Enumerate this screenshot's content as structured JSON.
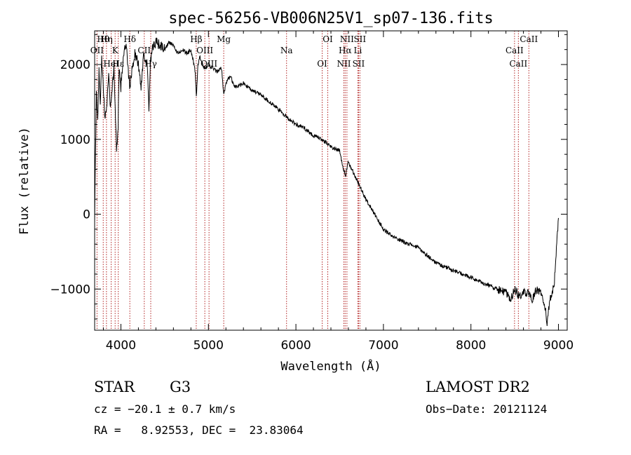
{
  "chart_data": {
    "type": "line",
    "title": "spec-56256-VB006N25V1_sp07-136.fits",
    "xlabel": "Wavelength (Å)",
    "ylabel": "Flux (relative)",
    "xlim": [
      3700,
      9100
    ],
    "ylim": [
      -1550,
      2450
    ],
    "xticks": [
      4000,
      5000,
      6000,
      7000,
      8000,
      9000
    ],
    "yticks": [
      -1000,
      0,
      1000,
      2000
    ],
    "series": [
      {
        "name": "flux",
        "x": [
          3700,
          3710,
          3720,
          3735,
          3750,
          3765,
          3780,
          3800,
          3820,
          3840,
          3860,
          3880,
          3900,
          3920,
          3935,
          3950,
          3968,
          3980,
          4000,
          4030,
          4060,
          4100,
          4130,
          4160,
          4200,
          4230,
          4260,
          4300,
          4320,
          4340,
          4360,
          4400,
          4450,
          4500,
          4550,
          4600,
          4650,
          4700,
          4750,
          4800,
          4850,
          4862,
          4880,
          4900,
          4950,
          5000,
          5050,
          5100,
          5150,
          5175,
          5200,
          5250,
          5300,
          5400,
          5500,
          5600,
          5700,
          5800,
          5890,
          5950,
          6000,
          6100,
          6200,
          6300,
          6400,
          6500,
          6563,
          6600,
          6700,
          6800,
          6900,
          7000,
          7100,
          7200,
          7300,
          7400,
          7500,
          7600,
          7700,
          7800,
          7900,
          8000,
          8100,
          8200,
          8300,
          8400,
          8450,
          8500,
          8550,
          8600,
          8650,
          8700,
          8750,
          8800,
          8850,
          8870,
          8900,
          8950,
          9000
        ],
        "values": [
          -50,
          800,
          1600,
          1300,
          1900,
          1500,
          2100,
          1650,
          1250,
          1500,
          1900,
          1400,
          1700,
          1950,
          1450,
          850,
          1200,
          1900,
          1700,
          2150,
          2250,
          1700,
          1950,
          2150,
          2000,
          1700,
          2150,
          2000,
          1400,
          2050,
          2200,
          2300,
          2250,
          2200,
          2300,
          2250,
          2150,
          2200,
          2150,
          2200,
          1900,
          1550,
          2000,
          2100,
          1950,
          2000,
          1950,
          1900,
          1950,
          1600,
          1750,
          1850,
          1700,
          1750,
          1650,
          1600,
          1500,
          1400,
          1300,
          1250,
          1200,
          1150,
          1050,
          1000,
          900,
          850,
          500,
          700,
          450,
          200,
          0,
          -200,
          -300,
          -350,
          -400,
          -450,
          -550,
          -650,
          -700,
          -750,
          -800,
          -850,
          -900,
          -950,
          -1000,
          -1050,
          -1150,
          -1000,
          -1100,
          -1050,
          -1050,
          -1150,
          -1000,
          -1050,
          -1250,
          -1500,
          -1150,
          -950,
          -50
        ]
      }
    ],
    "emission_lines": [
      {
        "name": "Hθ",
        "wavelength": 3798
      },
      {
        "name": "OII",
        "wavelength": 3727
      },
      {
        "name": "HeI",
        "wavelength": 3889
      },
      {
        "name": "Hη",
        "wavelength": 3835
      },
      {
        "name": "K",
        "wavelength": 3934
      },
      {
        "name": "Hε",
        "wavelength": 3970
      },
      {
        "name": "Hδ",
        "wavelength": 4102
      },
      {
        "name": "CII",
        "wavelength": 4267
      },
      {
        "name": "Hγ",
        "wavelength": 4341
      },
      {
        "name": "Hβ",
        "wavelength": 4861
      },
      {
        "name": "OIII",
        "wavelength": 4959
      },
      {
        "name": "OIII",
        "wavelength": 5007
      },
      {
        "name": "Mg",
        "wavelength": 5175
      },
      {
        "name": "Na",
        "wavelength": 5893
      },
      {
        "name": "OI",
        "wavelength": 6300
      },
      {
        "name": "OI",
        "wavelength": 6364
      },
      {
        "name": "Hα",
        "wavelength": 6563
      },
      {
        "name": "NII",
        "wavelength": 6548
      },
      {
        "name": "NII",
        "wavelength": 6583
      },
      {
        "name": "Li",
        "wavelength": 6708
      },
      {
        "name": "SII",
        "wavelength": 6716
      },
      {
        "name": "SII",
        "wavelength": 6731
      },
      {
        "name": "CaII",
        "wavelength": 8498
      },
      {
        "name": "CaII",
        "wavelength": 8542
      },
      {
        "name": "CaII",
        "wavelength": 8662
      }
    ]
  },
  "footer": {
    "object_class": "STAR",
    "subclass": "G3",
    "survey": "LAMOST DR2",
    "cz": "cz = −20.1 ± 0.7 km/s",
    "obs_date": "Obs−Date: 20121124",
    "coords": "RA =   8.92553, DEC =  23.83064"
  }
}
